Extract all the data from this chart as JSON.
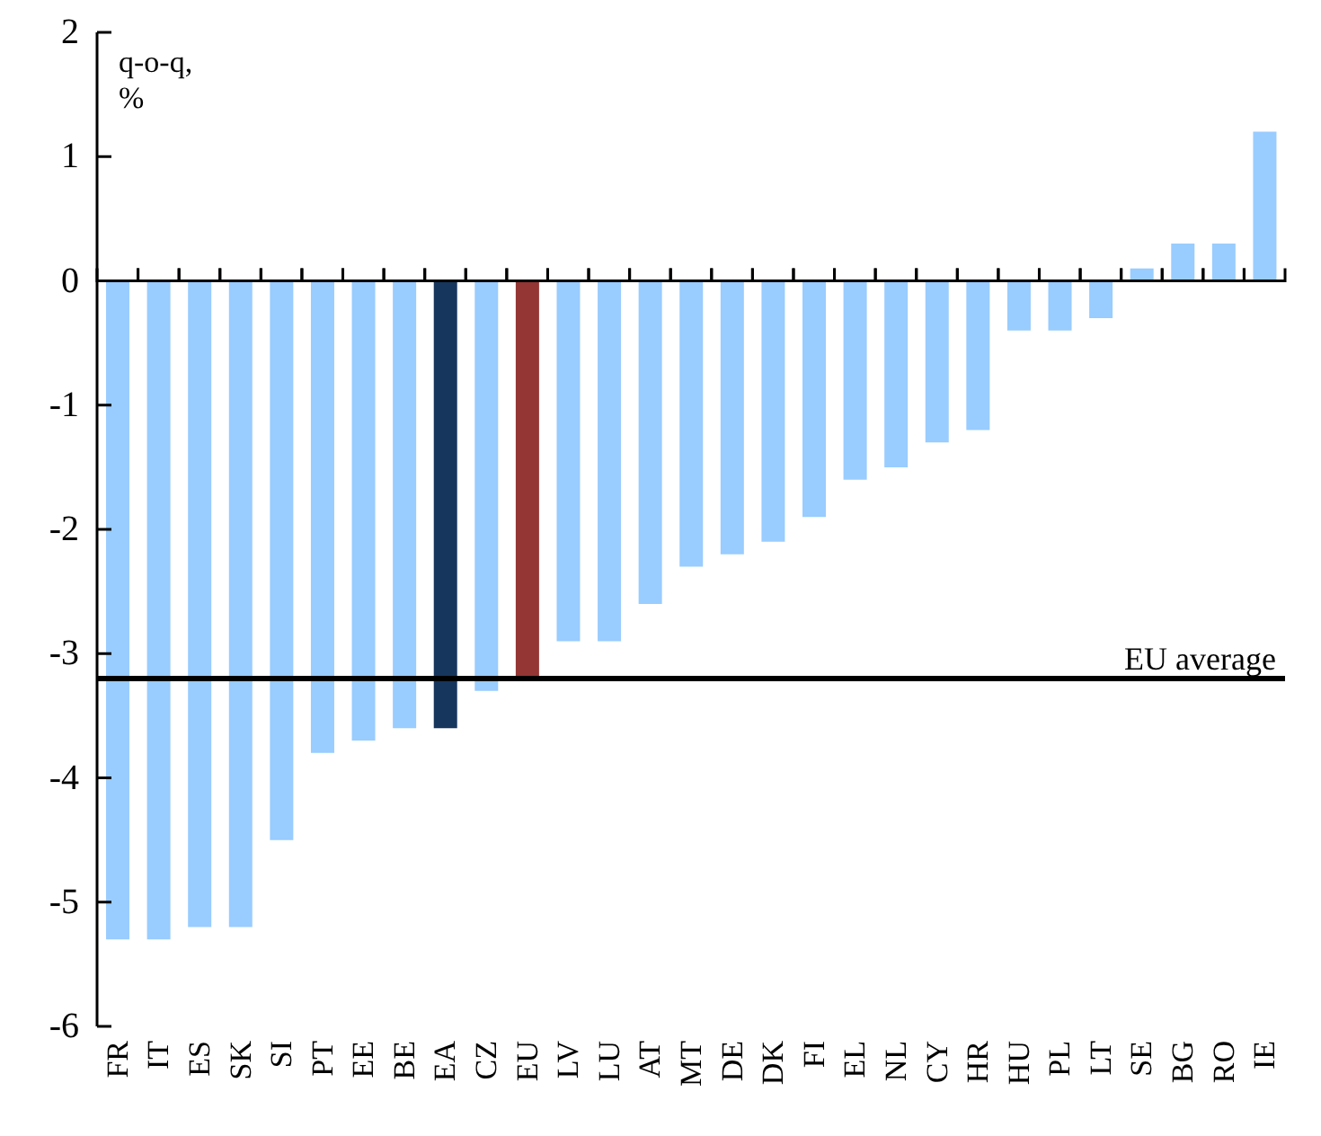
{
  "chart_data": {
    "type": "bar",
    "ylabel": "q-o-q, %",
    "categories": [
      "FR",
      "IT",
      "ES",
      "SK",
      "SI",
      "PT",
      "EE",
      "BE",
      "EA",
      "CZ",
      "EU",
      "LV",
      "LU",
      "AT",
      "MT",
      "DE",
      "DK",
      "FI",
      "EL",
      "NL",
      "CY",
      "HR",
      "HU",
      "PL",
      "LT",
      "SE",
      "BG",
      "RO",
      "IE"
    ],
    "values": [
      -5.3,
      -5.3,
      -5.2,
      -5.2,
      -4.5,
      -3.8,
      -3.7,
      -3.6,
      -3.6,
      -3.3,
      -3.2,
      -2.9,
      -2.9,
      -2.6,
      -2.3,
      -2.2,
      -2.1,
      -1.9,
      -1.6,
      -1.5,
      -1.3,
      -1.2,
      -0.4,
      -0.4,
      -0.3,
      0.1,
      0.3,
      0.3,
      1.2
    ],
    "colors": [
      "#99ccff",
      "#99ccff",
      "#99ccff",
      "#99ccff",
      "#99ccff",
      "#99ccff",
      "#99ccff",
      "#99ccff",
      "#17365d",
      "#99ccff",
      "#943634",
      "#99ccff",
      "#99ccff",
      "#99ccff",
      "#99ccff",
      "#99ccff",
      "#99ccff",
      "#99ccff",
      "#99ccff",
      "#99ccff",
      "#99ccff",
      "#99ccff",
      "#99ccff",
      "#99ccff",
      "#99ccff",
      "#99ccff",
      "#99ccff",
      "#99ccff",
      "#99ccff"
    ],
    "ylim": [
      -6,
      2
    ],
    "yticks": [
      -6,
      -5,
      -4,
      -3,
      -2,
      -1,
      0,
      1,
      2
    ],
    "ref_lines": [
      {
        "axis": "y",
        "value": -3.2,
        "label": "EU average",
        "color": "#000000"
      }
    ],
    "grid": false,
    "legend": false
  }
}
